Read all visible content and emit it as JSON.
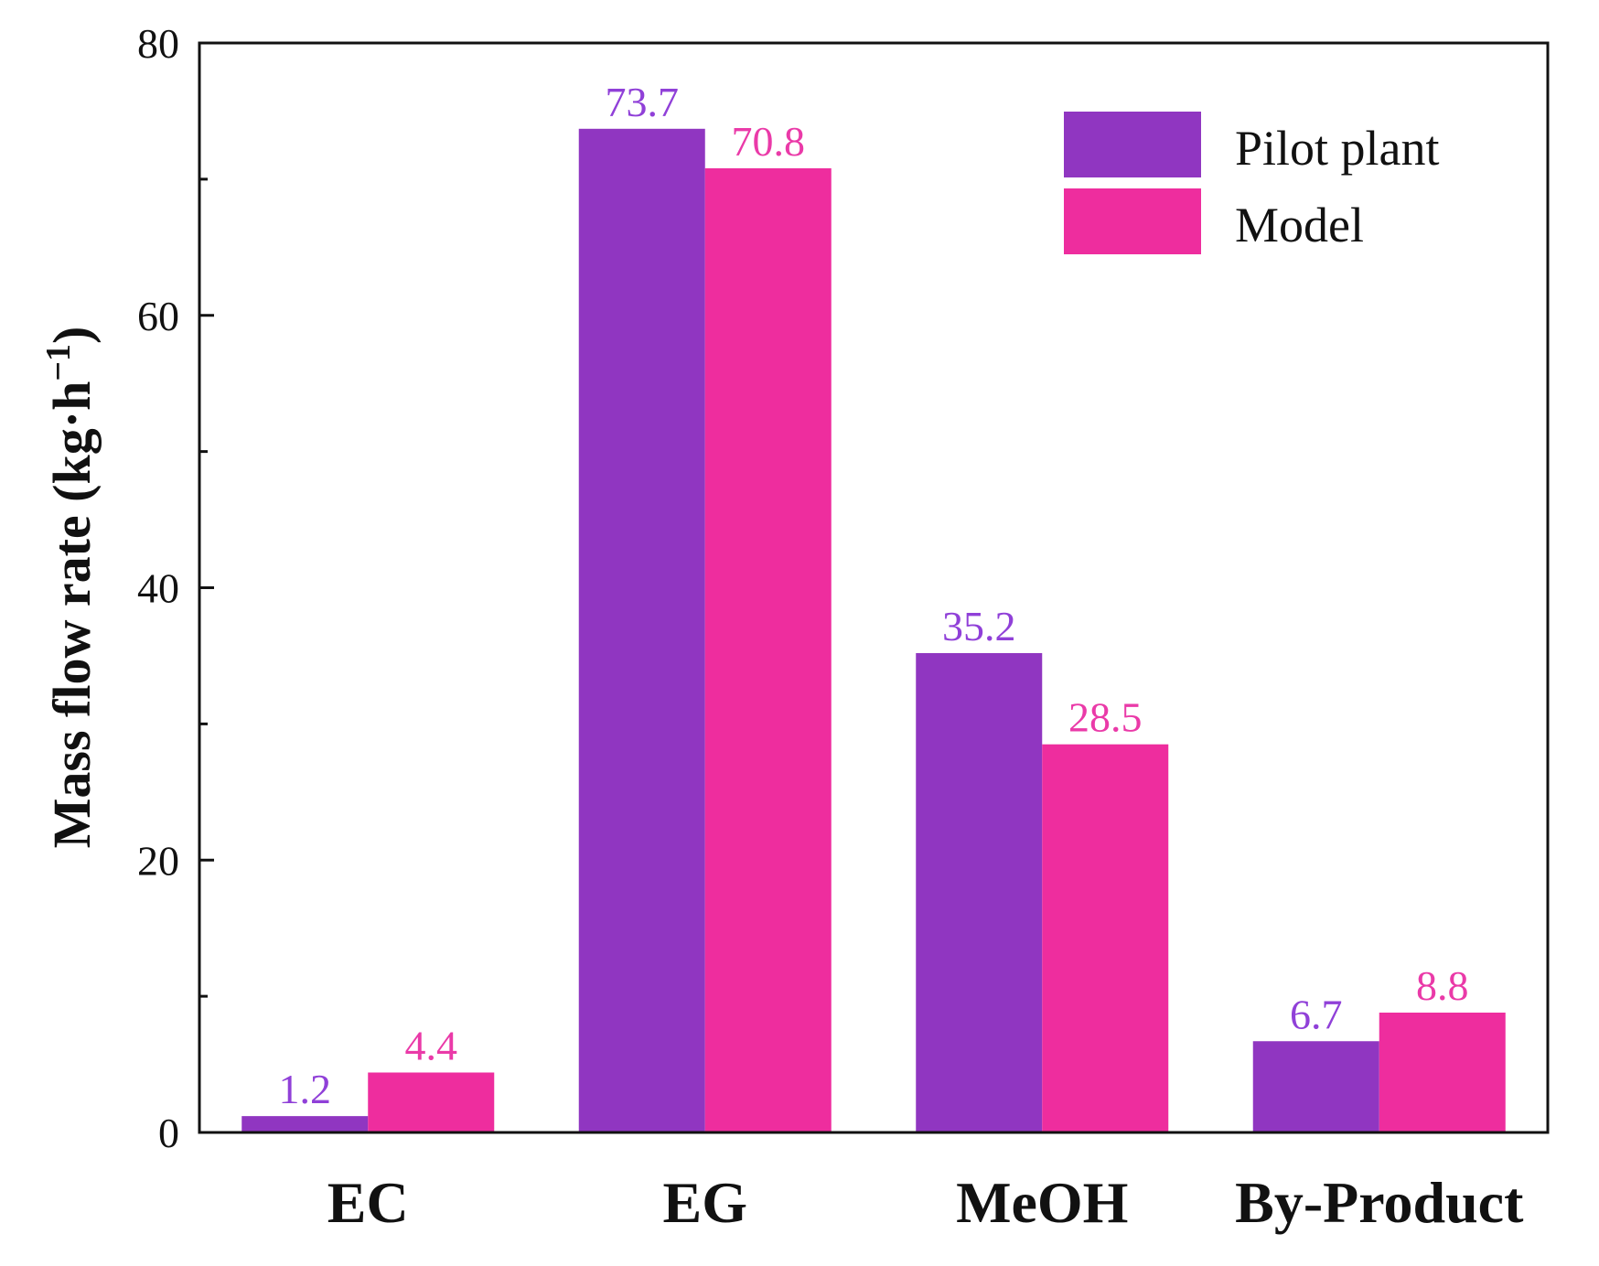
{
  "chart_data": {
    "type": "bar",
    "title": "",
    "xlabel": "",
    "ylabel": "Mass flow rate (kg·h",
    "ylabel_superscript": "−1",
    "ylabel_close": ")",
    "ylim": [
      0,
      80
    ],
    "yticks": [
      0,
      20,
      40,
      60,
      80
    ],
    "categories": [
      "EC",
      "EG",
      "MeOH",
      "By-Product"
    ],
    "series": [
      {
        "name": "Pilot plant",
        "color": "#9036c1",
        "values": [
          1.2,
          73.7,
          35.2,
          6.7
        ]
      },
      {
        "name": "Model",
        "color": "#ee2d9e",
        "values": [
          4.4,
          70.8,
          28.5,
          8.8
        ]
      }
    ],
    "value_label_colors": [
      "#9040d8",
      "#ea3aa8"
    ],
    "legend_position": "top-right",
    "grid": false
  }
}
